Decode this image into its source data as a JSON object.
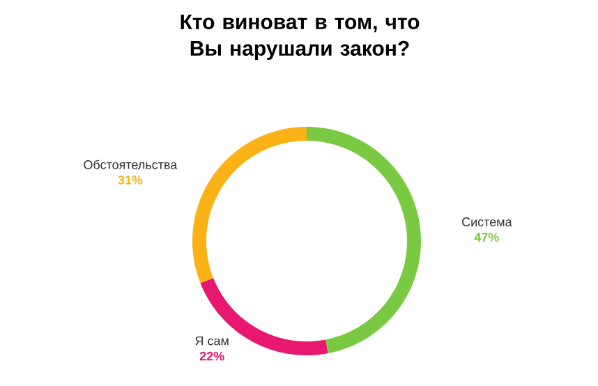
{
  "chart_data": {
    "type": "donut",
    "title": "Кто виноват  в том, что Вы нарушали закон?",
    "categories": [
      "Система",
      "Я сам",
      "Обстоятельства"
    ],
    "values": [
      47,
      22,
      31
    ],
    "value_labels": [
      "47%",
      "22%",
      "31%"
    ],
    "colors": [
      "#7ac943",
      "#e8176f",
      "#fbb216"
    ]
  }
}
